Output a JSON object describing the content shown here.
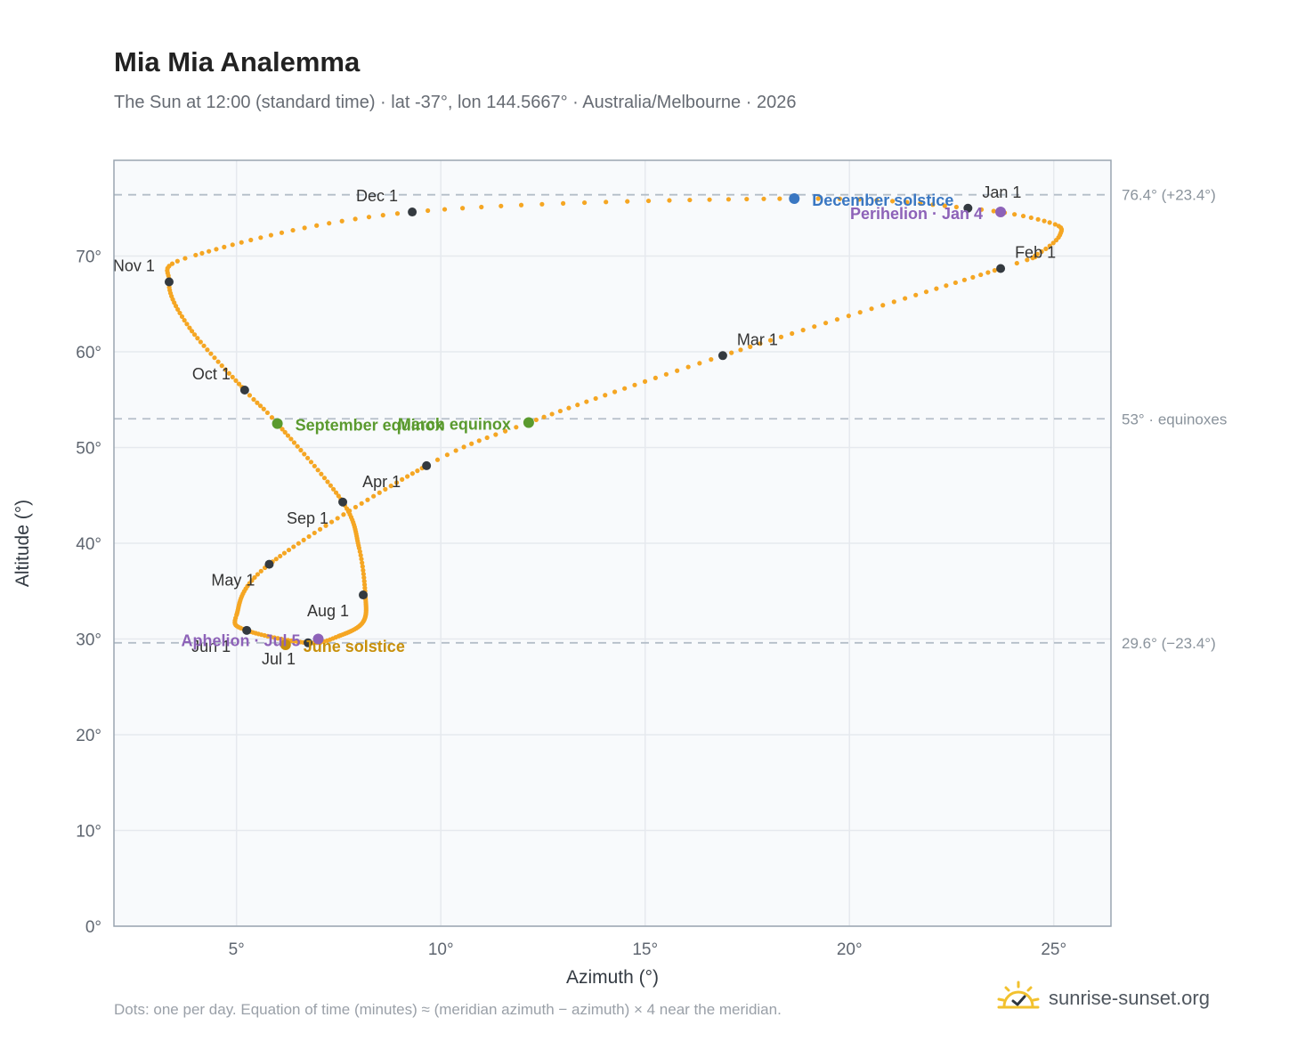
{
  "header": {
    "title": "Mia Mia Analemma",
    "subtitle": "The Sun at 12:00 (standard time) · lat -37°, lon 144.5667° · Australia/Melbourne · 2026"
  },
  "footer": {
    "note": "Dots: one per day. Equation of time (minutes) ≈ (meridian azimuth − azimuth) × 4 near the meridian.",
    "brand": "sunrise-sunset.org"
  },
  "colors": {
    "path": "#f5a623",
    "month_marker": "#343a40",
    "solstice_december": "#3a77c2",
    "solstice_june": "#c8900b",
    "equinox": "#5a9a2e",
    "apsis": "#8d62b8",
    "reference_line": "#b4bec8",
    "grid": "#e6e9ee",
    "plot_bg": "#f8fafc"
  },
  "chart_data": {
    "type": "scatter",
    "xlabel": "Azimuth (°)",
    "ylabel": "Altitude (°)",
    "xlim": [
      2,
      26.4
    ],
    "ylim": [
      0,
      80
    ],
    "xticks": [
      5,
      10,
      15,
      20,
      25
    ],
    "xtick_labels": [
      "5°",
      "10°",
      "15°",
      "20°",
      "25°"
    ],
    "yticks": [
      0,
      10,
      20,
      30,
      40,
      50,
      60,
      70
    ],
    "ytick_labels": [
      "0°",
      "10°",
      "20°",
      "30°",
      "40°",
      "50°",
      "60°",
      "70°"
    ],
    "grid": true,
    "path_anchors": [
      {
        "day": 0,
        "az": 22.9,
        "alt": 75.0
      },
      {
        "day": 9,
        "az": 24.9,
        "alt": 73.5
      },
      {
        "day": 16,
        "az": 25.15,
        "alt": 72.2
      },
      {
        "day": 23,
        "az": 24.6,
        "alt": 70.2
      },
      {
        "day": 31,
        "az": 23.7,
        "alt": 68.7
      },
      {
        "day": 59,
        "az": 16.9,
        "alt": 59.6
      },
      {
        "day": 79,
        "az": 12.15,
        "alt": 52.6
      },
      {
        "day": 90,
        "az": 9.65,
        "alt": 48.1
      },
      {
        "day": 120,
        "az": 5.8,
        "alt": 37.8
      },
      {
        "day": 141,
        "az": 5.0,
        "alt": 32.5
      },
      {
        "day": 151,
        "az": 5.25,
        "alt": 30.9
      },
      {
        "day": 172,
        "az": 6.75,
        "alt": 29.6
      },
      {
        "day": 181,
        "az": 7.5,
        "alt": 30.3
      },
      {
        "day": 195,
        "az": 8.1,
        "alt": 31.8
      },
      {
        "day": 212,
        "az": 8.15,
        "alt": 34.7
      },
      {
        "day": 225,
        "az": 8.0,
        "alt": 39.5
      },
      {
        "day": 243,
        "az": 7.6,
        "alt": 44.3
      },
      {
        "day": 265,
        "az": 6.0,
        "alt": 52.5
      },
      {
        "day": 273,
        "az": 5.2,
        "alt": 56.0
      },
      {
        "day": 290,
        "az": 3.85,
        "alt": 62.5
      },
      {
        "day": 304,
        "az": 3.35,
        "alt": 67.3
      },
      {
        "day": 314,
        "az": 4.0,
        "alt": 70.1
      },
      {
        "day": 334,
        "az": 9.3,
        "alt": 74.6
      },
      {
        "day": 354,
        "az": 18.65,
        "alt": 76.0
      },
      {
        "day": 365,
        "az": 22.9,
        "alt": 75.0
      }
    ],
    "month_markers": [
      {
        "label": "Jan 1",
        "az": 22.9,
        "alt": 75.0
      },
      {
        "label": "Feb 1",
        "az": 23.7,
        "alt": 68.7
      },
      {
        "label": "Mar 1",
        "az": 16.9,
        "alt": 59.6
      },
      {
        "label": "Apr 1",
        "az": 9.65,
        "alt": 48.1
      },
      {
        "label": "May 1",
        "az": 5.8,
        "alt": 37.8
      },
      {
        "label": "Jun 1",
        "az": 5.25,
        "alt": 30.9
      },
      {
        "label": "Jul 1",
        "az": 6.75,
        "alt": 29.6
      },
      {
        "label": "Aug 1",
        "az": 8.1,
        "alt": 34.6
      },
      {
        "label": "Sep 1",
        "az": 7.6,
        "alt": 44.3
      },
      {
        "label": "Oct 1",
        "az": 5.2,
        "alt": 56.0
      },
      {
        "label": "Nov 1",
        "az": 3.35,
        "alt": 67.3
      },
      {
        "label": "Dec 1",
        "az": 9.3,
        "alt": 74.6
      }
    ],
    "events": [
      {
        "label": "December solstice",
        "az": 18.65,
        "alt": 76.0,
        "color_key": "solstice_december"
      },
      {
        "label": "Perihelion · Jan 4",
        "az": 23.7,
        "alt": 74.6,
        "color_key": "apsis"
      },
      {
        "label": "March equinox",
        "az": 12.15,
        "alt": 52.6,
        "color_key": "equinox"
      },
      {
        "label": "September equinox",
        "az": 6.0,
        "alt": 52.5,
        "color_key": "equinox"
      },
      {
        "label": "June solstice",
        "az": 6.2,
        "alt": 29.4,
        "color_key": "solstice_june"
      },
      {
        "label": "Aphelion · Jul 5",
        "az": 7.0,
        "alt": 30.0,
        "color_key": "apsis"
      }
    ],
    "reference_lines": [
      {
        "alt": 76.4,
        "label": "76.4° (+23.4°)"
      },
      {
        "alt": 53.0,
        "label": "53° · equinoxes"
      },
      {
        "alt": 29.6,
        "label": "29.6° (−23.4°)"
      }
    ]
  }
}
